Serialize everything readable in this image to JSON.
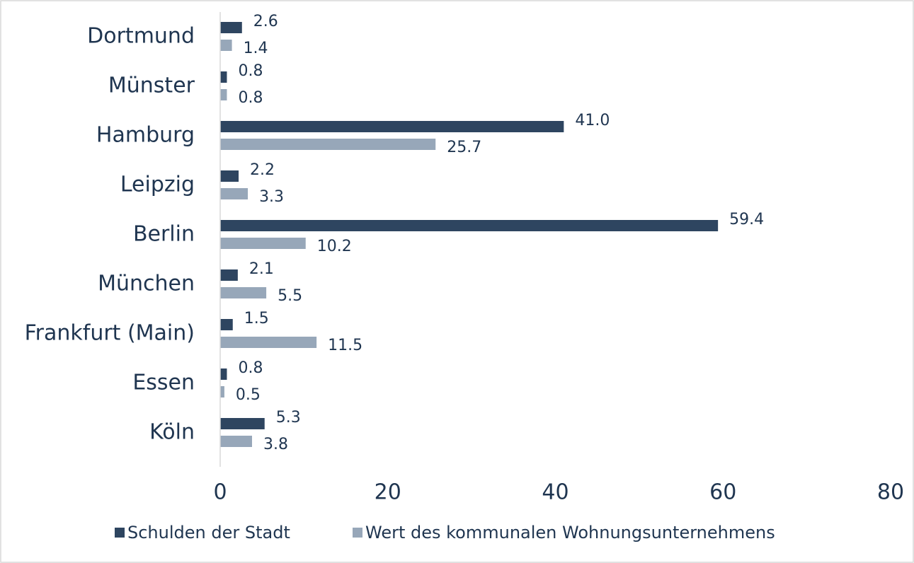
{
  "chart_data": {
    "type": "hbar",
    "categories": [
      "Dortmund",
      "Münster",
      "Hamburg",
      "Leipzig",
      "Berlin",
      "München",
      "Frankfurt (Main)",
      "Essen",
      "Köln"
    ],
    "series": [
      {
        "name": "Schulden der Stadt",
        "color": "#2e4560",
        "values": [
          2.6,
          0.8,
          41.0,
          2.2,
          59.4,
          2.1,
          1.5,
          0.8,
          5.3
        ],
        "value_labels": [
          "2.6",
          "0.8",
          "41.0",
          "2.2",
          "59.4",
          "2.1",
          "1.5",
          "0.8",
          "5.3"
        ]
      },
      {
        "name": "Wert des kommunalen Wohnungsunternehmens",
        "color": "#97a7b9",
        "values": [
          1.4,
          0.8,
          25.7,
          3.3,
          10.2,
          5.5,
          11.5,
          0.5,
          3.8
        ],
        "value_labels": [
          "1.4",
          "0.8",
          "25.7",
          "3.3",
          "10.2",
          "5.5",
          "11.5",
          "0.5",
          "3.8"
        ]
      }
    ],
    "xlim": [
      0,
      80
    ],
    "xticks": [
      0,
      20,
      40,
      60,
      80
    ],
    "grid": false,
    "legend": "bottom"
  }
}
